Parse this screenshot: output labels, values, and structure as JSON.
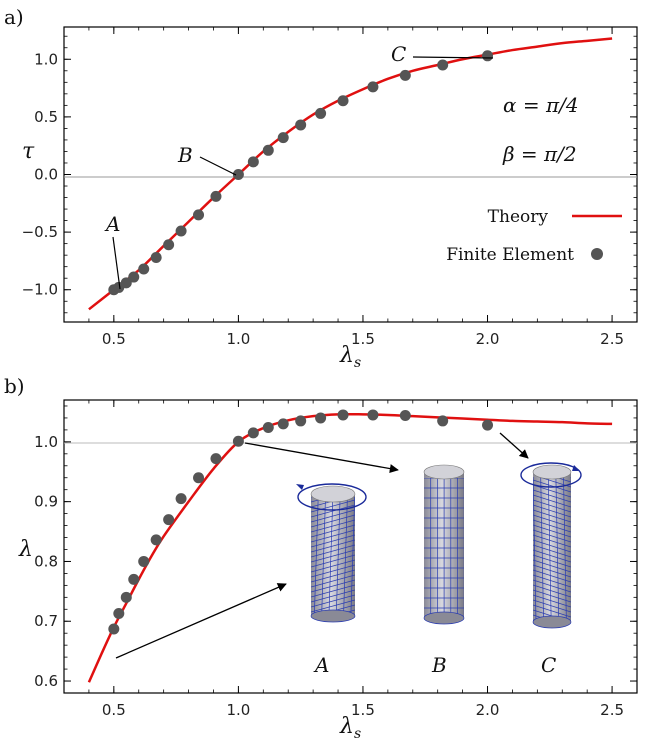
{
  "panels": {
    "a": {
      "label": "a)",
      "ylabel": "τ",
      "xlabel": "λ",
      "xlabel_sub": "s",
      "xticks": [
        "0.5",
        "1.0",
        "1.5",
        "2.0",
        "2.5"
      ],
      "yticks": [
        "-1.0",
        "-0.5",
        "0.0",
        "0.5",
        "1.0"
      ],
      "annotations": {
        "alpha": "α = π/4",
        "beta": "β = π/2",
        "pointA": "A",
        "pointB": "B",
        "pointC": "C"
      },
      "legend": {
        "theory": "Theory",
        "fe": "Finite Element"
      }
    },
    "b": {
      "label": "b)",
      "ylabel": "λ",
      "xlabel": "λ",
      "xlabel_sub": "s",
      "xticks": [
        "0.5",
        "1.0",
        "1.5",
        "2.0",
        "2.5"
      ],
      "yticks": [
        "0.6",
        "0.7",
        "0.8",
        "0.9",
        "1.0"
      ],
      "insets": {
        "A": "A",
        "B": "B",
        "C": "C"
      }
    }
  },
  "colors": {
    "theory": "#e01010",
    "fe": "#555555",
    "inset_mesh": "#2a3cb0",
    "arrow_rot": "#1a2a9a"
  },
  "chart_data": [
    {
      "type": "line",
      "panel": "a",
      "xlim": [
        0.3,
        2.6
      ],
      "ylim": [
        -1.28,
        1.28
      ],
      "grid": false,
      "legend_position": "right",
      "series": [
        {
          "name": "Theory",
          "x": [
            0.4,
            0.5,
            0.6,
            0.7,
            0.8,
            0.9,
            1.0,
            1.1,
            1.2,
            1.3,
            1.4,
            1.5,
            1.6,
            1.7,
            1.8,
            1.9,
            2.0,
            2.1,
            2.2,
            2.3,
            2.4,
            2.5
          ],
          "y": [
            -1.17,
            -1.0,
            -0.83,
            -0.62,
            -0.41,
            -0.2,
            0.0,
            0.2,
            0.37,
            0.52,
            0.64,
            0.74,
            0.83,
            0.9,
            0.95,
            1.0,
            1.04,
            1.08,
            1.11,
            1.14,
            1.16,
            1.18
          ]
        },
        {
          "name": "Finite Element",
          "x": [
            0.5,
            0.52,
            0.55,
            0.58,
            0.62,
            0.67,
            0.72,
            0.77,
            0.84,
            0.91,
            1.0,
            1.06,
            1.12,
            1.18,
            1.25,
            1.33,
            1.42,
            1.54,
            1.67,
            1.82,
            2.0
          ],
          "y": [
            -1.0,
            -0.98,
            -0.94,
            -0.89,
            -0.82,
            -0.72,
            -0.61,
            -0.49,
            -0.35,
            -0.19,
            0.0,
            0.11,
            0.21,
            0.32,
            0.43,
            0.53,
            0.64,
            0.76,
            0.86,
            0.95,
            1.03
          ]
        }
      ]
    },
    {
      "type": "line",
      "panel": "b",
      "xlim": [
        0.3,
        2.6
      ],
      "ylim": [
        0.58,
        1.07
      ],
      "grid": false,
      "series": [
        {
          "name": "Theory",
          "x": [
            0.4,
            0.45,
            0.5,
            0.55,
            0.6,
            0.65,
            0.7,
            0.8,
            0.9,
            1.0,
            1.1,
            1.2,
            1.3,
            1.4,
            1.5,
            1.6,
            1.7,
            1.8,
            1.9,
            2.0,
            2.1,
            2.2,
            2.3,
            2.4,
            2.5
          ],
          "y": [
            0.598,
            0.645,
            0.69,
            0.73,
            0.77,
            0.808,
            0.842,
            0.9,
            0.955,
            1.0,
            1.023,
            1.036,
            1.043,
            1.046,
            1.046,
            1.045,
            1.043,
            1.041,
            1.039,
            1.037,
            1.035,
            1.034,
            1.033,
            1.031,
            1.03
          ]
        },
        {
          "name": "Finite Element",
          "x": [
            0.5,
            0.52,
            0.55,
            0.58,
            0.62,
            0.67,
            0.72,
            0.77,
            0.84,
            0.91,
            1.0,
            1.06,
            1.12,
            1.18,
            1.25,
            1.33,
            1.42,
            1.54,
            1.67,
            1.82,
            2.0
          ],
          "y": [
            0.687,
            0.713,
            0.74,
            0.77,
            0.8,
            0.836,
            0.87,
            0.905,
            0.94,
            0.972,
            1.001,
            1.015,
            1.024,
            1.03,
            1.035,
            1.04,
            1.045,
            1.045,
            1.044,
            1.035,
            1.028
          ]
        }
      ]
    }
  ]
}
